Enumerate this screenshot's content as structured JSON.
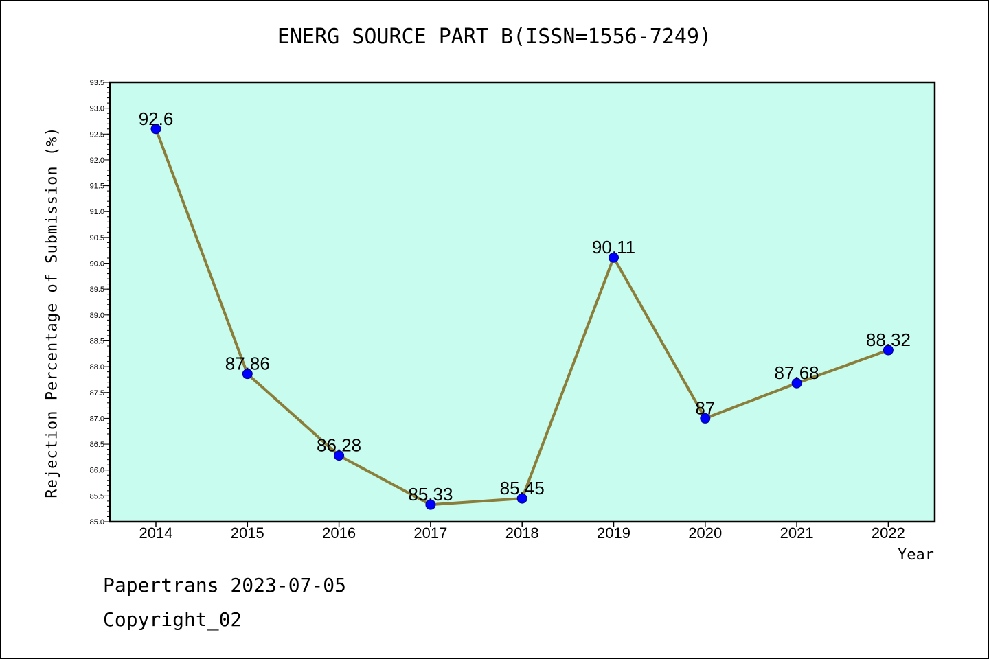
{
  "chart_data": {
    "type": "line",
    "title": "ENERG SOURCE PART B(ISSN=1556-7249)",
    "xlabel": "Year",
    "ylabel": "Rejection Percentage of Submission (%)",
    "categories": [
      "2014",
      "2015",
      "2016",
      "2017",
      "2018",
      "2019",
      "2020",
      "2021",
      "2022"
    ],
    "values": [
      92.6,
      87.86,
      86.28,
      85.33,
      85.45,
      90.11,
      87.0,
      87.68,
      88.32
    ],
    "data_labels": [
      "92.6",
      "87.86",
      "86.28",
      "85.33",
      "85.45",
      "90.11",
      "87",
      "87.68",
      "88.32"
    ],
    "ylim": [
      85.0,
      93.5
    ],
    "yticks": [
      "85.0",
      "85.5",
      "86.0",
      "86.5",
      "87.0",
      "87.5",
      "88.0",
      "88.5",
      "89.0",
      "89.5",
      "90.0",
      "90.5",
      "91.0",
      "91.5",
      "92.0",
      "92.5",
      "93.0",
      "93.5"
    ],
    "grid": false,
    "legend": "none",
    "colors": {
      "plot_background": "#c8fcee",
      "line": "#8b7d3a",
      "marker": "#0000ff"
    }
  },
  "footer": {
    "line1": "Papertrans 2023-07-05",
    "line2": "Copyright_02"
  }
}
